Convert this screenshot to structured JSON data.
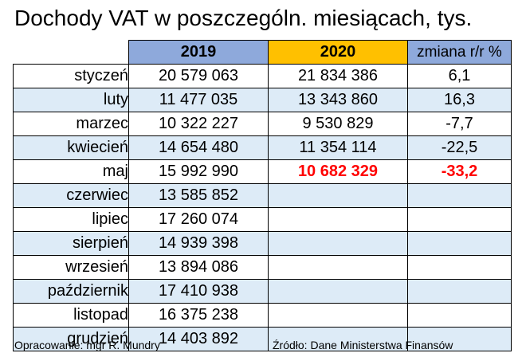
{
  "title": "Dochody VAT w poszczególn. miesiącach, tys.",
  "table": {
    "headers": [
      "",
      "2019",
      "2020",
      "zmiana r/r %"
    ],
    "rows": [
      {
        "month": "styczeń",
        "v2019": "20 579 063",
        "v2020": "21 834 386",
        "change": "6,1"
      },
      {
        "month": "luty",
        "v2019": "11 477 035",
        "v2020": "13 343 860",
        "change": "16,3"
      },
      {
        "month": "marzec",
        "v2019": "10 322 227",
        "v2020": "9 530 829",
        "change": "-7,7"
      },
      {
        "month": "kwiecień",
        "v2019": "14 654 480",
        "v2020": "11 354 114",
        "change": "-22,5"
      },
      {
        "month": "maj",
        "v2019": "15 992 990",
        "v2020": "10 682 329",
        "change": "-33,2"
      },
      {
        "month": "czerwiec",
        "v2019": "13 585 852",
        "v2020": "",
        "change": ""
      },
      {
        "month": "lipiec",
        "v2019": "17 260 074",
        "v2020": "",
        "change": ""
      },
      {
        "month": "sierpień",
        "v2019": "14 939 398",
        "v2020": "",
        "change": ""
      },
      {
        "month": "wrzesień",
        "v2019": "13 894 086",
        "v2020": "",
        "change": ""
      },
      {
        "month": "październik",
        "v2019": "17 410 938",
        "v2020": "",
        "change": ""
      },
      {
        "month": "listopad",
        "v2019": "16 375 238",
        "v2020": "",
        "change": ""
      },
      {
        "month": "grudzień",
        "v2019": "14 403 892",
        "v2020": "",
        "change": ""
      }
    ]
  },
  "colors": {
    "header_2019": "#8EA9DB",
    "header_2020": "#FFC000",
    "header_change": "#8EA9DB",
    "row_shade": "#DDEBF7",
    "highlight_text": "#FF0000"
  },
  "footer": {
    "author": "Opracowanie: mgr R. Mundry",
    "source": "Źródło: Dane Ministerstwa Finansów"
  }
}
